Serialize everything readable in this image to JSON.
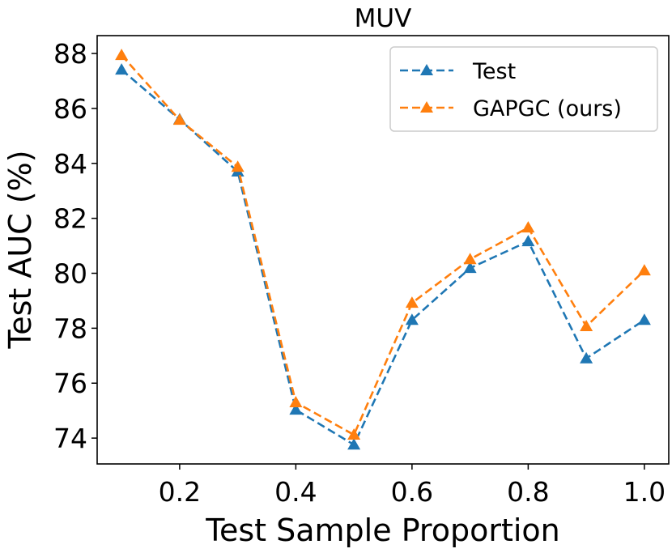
{
  "chart_data": {
    "type": "line",
    "title": "MUV",
    "xlabel": "Test Sample Proportion",
    "ylabel": "Test AUC (%)",
    "x": [
      0.1,
      0.2,
      0.3,
      0.4,
      0.5,
      0.6,
      0.7,
      0.8,
      0.9,
      1.0
    ],
    "xlim": [
      0.058,
      1.042
    ],
    "ylim": [
      73.06,
      88.65
    ],
    "xticks": [
      0.2,
      0.4,
      0.6,
      0.8,
      1.0
    ],
    "xtick_labels": [
      "0.2",
      "0.4",
      "0.6",
      "0.8",
      "1.0"
    ],
    "yticks": [
      74,
      76,
      78,
      80,
      82,
      84,
      86,
      88
    ],
    "ytick_labels": [
      "74",
      "76",
      "78",
      "80",
      "82",
      "84",
      "86",
      "88"
    ],
    "grid": false,
    "legend_position": "top-right",
    "series": [
      {
        "name": "Test",
        "color": "#1f77b4",
        "marker": "triangle",
        "linestyle": "dashed",
        "values": [
          87.41,
          85.6,
          83.7,
          75.03,
          73.76,
          78.3,
          80.19,
          81.16,
          76.9,
          78.3
        ]
      },
      {
        "name": "GAPGC (ours)",
        "color": "#ff7f0e",
        "marker": "triangle",
        "linestyle": "dashed",
        "values": [
          87.94,
          85.58,
          83.87,
          75.3,
          74.12,
          78.92,
          80.51,
          81.66,
          78.07,
          80.1
        ]
      }
    ]
  }
}
